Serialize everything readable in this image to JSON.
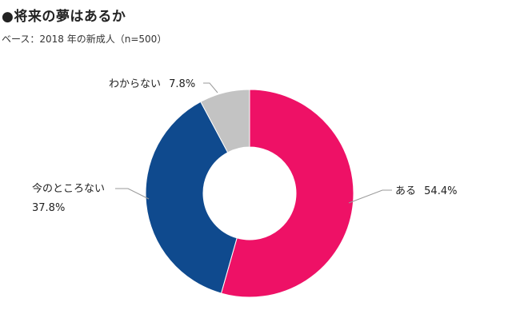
{
  "title": "●将来の夢はあるか",
  "subtitle": "ベース：2018 年の新成人（n=500）",
  "chart_data": {
    "type": "pie",
    "donut": true,
    "unit": "%",
    "slices": [
      {
        "label": "ある",
        "value": 54.4,
        "display": "54.4%",
        "color": "#ee1166"
      },
      {
        "label": "今のところない",
        "value": 37.8,
        "display": "37.8%",
        "color": "#0f4a8e"
      },
      {
        "label": "わからない",
        "value": 7.8,
        "display": "7.8%",
        "color": "#c3c3c3"
      }
    ]
  }
}
